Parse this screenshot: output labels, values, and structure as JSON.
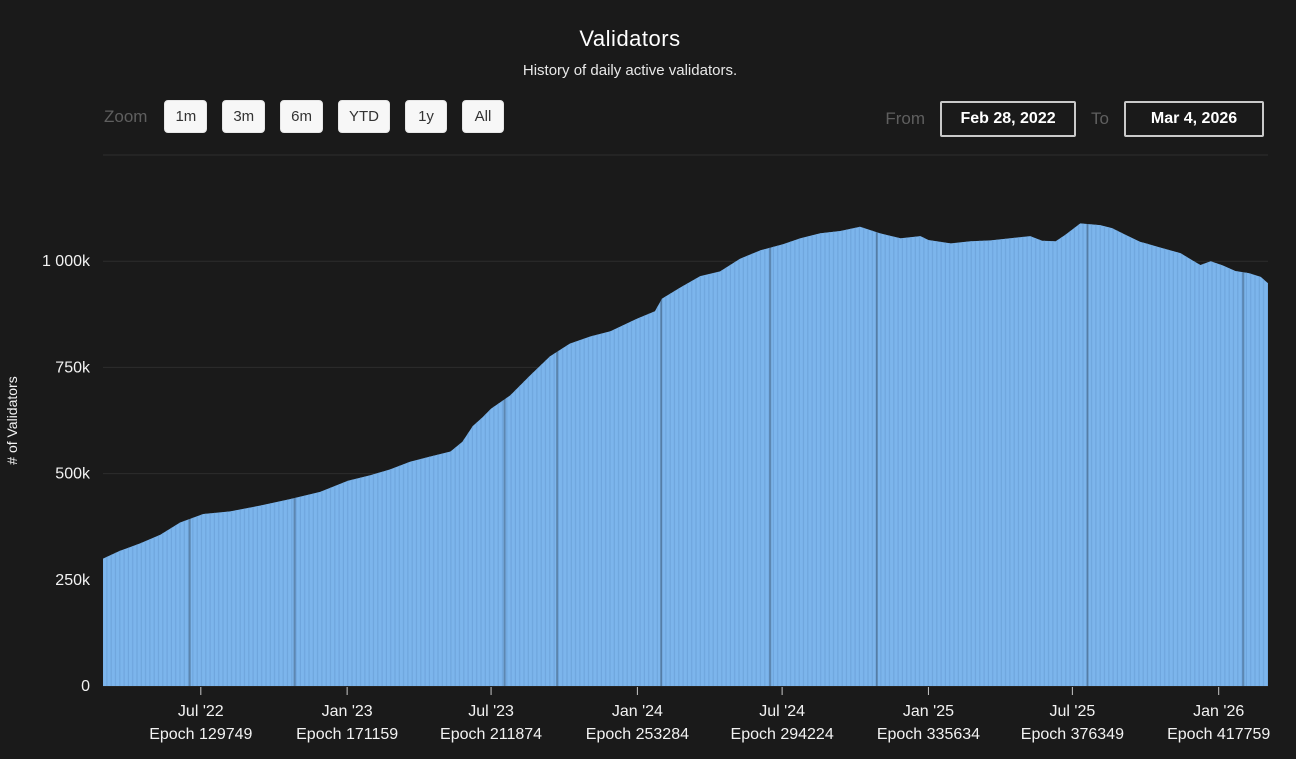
{
  "header": {
    "title": "Validators",
    "subtitle": "History of daily active validators."
  },
  "toolbar": {
    "zoom_label": "Zoom",
    "zoom_buttons": [
      "1m",
      "3m",
      "6m",
      "YTD",
      "1y",
      "All"
    ],
    "from_label": "From",
    "from_value": "Feb 28, 2022",
    "to_label": "To",
    "to_value": "Mar 4, 2026"
  },
  "chart_data": {
    "type": "area",
    "title": "Validators",
    "subtitle": "History of daily active validators.",
    "ylabel": "# of Validators",
    "x_range": [
      "2022-02-28",
      "2026-03-04"
    ],
    "ylim_k": [
      0,
      1250
    ],
    "grid": true,
    "legend": "none",
    "y_ticks": [
      {
        "value_k": 0,
        "label": "0"
      },
      {
        "value_k": 250,
        "label": "250k"
      },
      {
        "value_k": 500,
        "label": "500k"
      },
      {
        "value_k": 750,
        "label": "750k"
      },
      {
        "value_k": 1000,
        "label": "1 000k"
      },
      {
        "value_k": 1250,
        "label": ""
      }
    ],
    "x_ticks": [
      {
        "date": "2022-07-01",
        "month_label": "Jul '22",
        "epoch_label": "Epoch 129749"
      },
      {
        "date": "2023-01-01",
        "month_label": "Jan '23",
        "epoch_label": "Epoch 171159"
      },
      {
        "date": "2023-07-01",
        "month_label": "Jul '23",
        "epoch_label": "Epoch 211874"
      },
      {
        "date": "2024-01-01",
        "month_label": "Jan '24",
        "epoch_label": "Epoch 253284"
      },
      {
        "date": "2024-07-01",
        "month_label": "Jul '24",
        "epoch_label": "Epoch 294224"
      },
      {
        "date": "2025-01-01",
        "month_label": "Jan '25",
        "epoch_label": "Epoch 335634"
      },
      {
        "date": "2025-07-01",
        "month_label": "Jul '25",
        "epoch_label": "Epoch 376349"
      },
      {
        "date": "2026-01-01",
        "month_label": "Jan '26",
        "epoch_label": "Epoch 417759"
      }
    ],
    "points_unit": "thousand validators",
    "points": [
      [
        "2022-02-28",
        300
      ],
      [
        "2022-03-21",
        318
      ],
      [
        "2022-04-16",
        336
      ],
      [
        "2022-05-11",
        356
      ],
      [
        "2022-06-05",
        385
      ],
      [
        "2022-07-04",
        405
      ],
      [
        "2022-08-07",
        411
      ],
      [
        "2022-09-14",
        425
      ],
      [
        "2022-10-21",
        440
      ],
      [
        "2022-11-28",
        457
      ],
      [
        "2023-01-02",
        483
      ],
      [
        "2023-01-30",
        496
      ],
      [
        "2023-02-24",
        510
      ],
      [
        "2023-03-21",
        528
      ],
      [
        "2023-04-15",
        540
      ],
      [
        "2023-05-11",
        552
      ],
      [
        "2023-05-26",
        575
      ],
      [
        "2023-06-08",
        612
      ],
      [
        "2023-06-20",
        632
      ],
      [
        "2023-07-01",
        653
      ],
      [
        "2023-07-25",
        684
      ],
      [
        "2023-08-19",
        731
      ],
      [
        "2023-09-13",
        776
      ],
      [
        "2023-10-08",
        806
      ],
      [
        "2023-11-03",
        823
      ],
      [
        "2023-11-28",
        835
      ],
      [
        "2024-01-01",
        865
      ],
      [
        "2024-01-23",
        882
      ],
      [
        "2024-02-01",
        912
      ],
      [
        "2024-02-24",
        938
      ],
      [
        "2024-03-20",
        965
      ],
      [
        "2024-04-14",
        976
      ],
      [
        "2024-05-09",
        1006
      ],
      [
        "2024-06-04",
        1026
      ],
      [
        "2024-07-02",
        1040
      ],
      [
        "2024-07-24",
        1054
      ],
      [
        "2024-08-18",
        1066
      ],
      [
        "2024-09-12",
        1071
      ],
      [
        "2024-10-07",
        1081
      ],
      [
        "2024-11-01",
        1066
      ],
      [
        "2024-11-27",
        1054
      ],
      [
        "2024-12-22",
        1059
      ],
      [
        "2025-01-01",
        1050
      ],
      [
        "2025-01-29",
        1042
      ],
      [
        "2025-02-23",
        1047
      ],
      [
        "2025-03-20",
        1049
      ],
      [
        "2025-04-14",
        1054
      ],
      [
        "2025-05-09",
        1059
      ],
      [
        "2025-05-24",
        1048
      ],
      [
        "2025-06-10",
        1047
      ],
      [
        "2025-06-22",
        1062
      ],
      [
        "2025-07-11",
        1089
      ],
      [
        "2025-08-05",
        1085
      ],
      [
        "2025-08-20",
        1078
      ],
      [
        "2025-09-06",
        1062
      ],
      [
        "2025-09-24",
        1046
      ],
      [
        "2025-10-20",
        1032
      ],
      [
        "2025-11-14",
        1019
      ],
      [
        "2025-11-29",
        1002
      ],
      [
        "2025-12-09",
        991
      ],
      [
        "2025-12-22",
        1000
      ],
      [
        "2026-01-06",
        990
      ],
      [
        "2026-01-22",
        977
      ],
      [
        "2026-02-08",
        972
      ],
      [
        "2026-02-23",
        963
      ],
      [
        "2026-03-04",
        948
      ]
    ],
    "gap_dates": [
      "2022-06-17",
      "2022-10-27",
      "2023-07-18",
      "2023-09-22",
      "2024-01-31",
      "2024-06-16",
      "2024-10-28",
      "2025-07-20",
      "2026-02-01"
    ],
    "colors": {
      "background": "#1a1a1a",
      "area": "#7cb5ec",
      "area_stripe": "#6fa6dd",
      "gap_line": "rgba(0,0,0,0.25)",
      "grid": "#2d2d2d",
      "axis_text": "#f2f2f2",
      "tick": "#c8c8c8"
    }
  }
}
